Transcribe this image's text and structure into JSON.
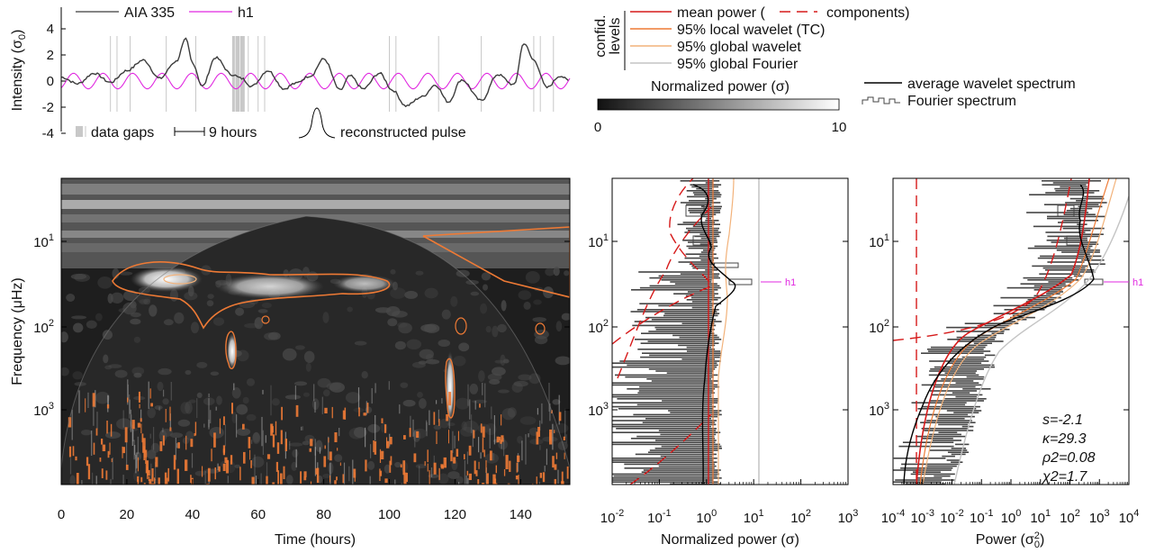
{
  "colors": {
    "aia": "#3c3c3c",
    "h1": "#e028e0",
    "mean_power": "#d61a1a",
    "local_wavelet": "#ee7a35",
    "global_wavelet": "#f2b27a",
    "global_fourier": "#c4c4c4",
    "avg_wavelet": "#000000",
    "fourier_bars": "#444444",
    "data_gaps": "#c8c8c8",
    "h1_label": "#e028e0"
  },
  "chart_data": [
    {
      "id": "lightcurve",
      "type": "line",
      "ylabel": "Intensity (σ0)",
      "ylim": [
        -4,
        4
      ],
      "yticks": [
        "4",
        "2",
        "0",
        "-2",
        "-4"
      ],
      "series": [
        {
          "name": "AIA 335",
          "x_hours": [
            0,
            5,
            10,
            15,
            20,
            25,
            30,
            35,
            38,
            40,
            43,
            47,
            52,
            55,
            58,
            63,
            68,
            71,
            76,
            80,
            85,
            88,
            92,
            97,
            101,
            105,
            110,
            114,
            118,
            122,
            128,
            133,
            138,
            141,
            144,
            148,
            152,
            155
          ],
          "values": [
            0.3,
            -0.2,
            0.6,
            -0.1,
            0.8,
            1.6,
            0.2,
            1.5,
            3.2,
            1.4,
            -0.4,
            1.8,
            0.5,
            0.2,
            -0.4,
            0.8,
            -0.6,
            -0.2,
            0.4,
            1.7,
            -0.7,
            0.4,
            -0.6,
            0.6,
            -0.7,
            -1.9,
            -1.2,
            -0.3,
            -1.6,
            0.1,
            -1.5,
            0.5,
            -0.3,
            2.9,
            1.6,
            -0.5,
            0.4,
            0.0
          ]
        },
        {
          "name": "h1",
          "period_hours": 9,
          "amplitude": 0.6
        }
      ],
      "data_gaps_hours": [
        15,
        17,
        21,
        32,
        41,
        52.5,
        53.5,
        54,
        55,
        55.5,
        57,
        60,
        62,
        100,
        102,
        115,
        128,
        144,
        146,
        150
      ],
      "annotations": [
        "data gaps",
        "9 hours",
        "reconstructed pulse"
      ]
    },
    {
      "id": "wavelet",
      "type": "heatmap",
      "title": "",
      "xlabel": "Time (hours)",
      "ylabel": "Frequency (μHz)",
      "xlim": [
        0,
        155
      ],
      "xticks": [
        "0",
        "20",
        "40",
        "60",
        "80",
        "100",
        "120",
        "140"
      ],
      "yticks": [
        {
          "base": "10",
          "exp": "1"
        },
        {
          "base": "10",
          "exp": "2"
        },
        {
          "base": "10",
          "exp": "3"
        }
      ],
      "colorbar": {
        "label": "Normalized power (σ)",
        "min": "0",
        "max": "10"
      }
    },
    {
      "id": "normalized_spectrum",
      "type": "line",
      "xlabel": "Normalized power (σ)",
      "xscale": "log",
      "xticks": [
        {
          "base": "10",
          "exp": "-2"
        },
        {
          "base": "10",
          "exp": "-1"
        },
        {
          "base": "10",
          "exp": "0"
        },
        {
          "base": "10",
          "exp": "1"
        },
        {
          "base": "10",
          "exp": "2"
        },
        {
          "base": "10",
          "exp": "3"
        }
      ],
      "yticks": [
        {
          "base": "10",
          "exp": "1"
        },
        {
          "base": "10",
          "exp": "2"
        },
        {
          "base": "10",
          "exp": "3"
        }
      ],
      "marker_label": "h1"
    },
    {
      "id": "power_spectrum",
      "type": "line",
      "xlabel": "Power (σ0²)",
      "xscale": "log",
      "xticks": [
        {
          "base": "10",
          "exp": "-4"
        },
        {
          "base": "10",
          "exp": "-3"
        },
        {
          "base": "10",
          "exp": "-2"
        },
        {
          "base": "10",
          "exp": "-1"
        },
        {
          "base": "10",
          "exp": "0"
        },
        {
          "base": "10",
          "exp": "1"
        },
        {
          "base": "10",
          "exp": "2"
        },
        {
          "base": "10",
          "exp": "3"
        },
        {
          "base": "10",
          "exp": "4"
        }
      ],
      "yticks": [
        {
          "base": "10",
          "exp": "1"
        },
        {
          "base": "10",
          "exp": "2"
        },
        {
          "base": "10",
          "exp": "3"
        }
      ],
      "marker_label": "h1",
      "fit": {
        "s": "s=-2.1",
        "kappa": "κ=29.3",
        "rho": "ρ2=0.08",
        "chi": "χ2=1.7"
      }
    }
  ],
  "legend": {
    "aia": "AIA 335",
    "h1": "h1",
    "mean_power": "mean power (",
    "components": "components)",
    "confid_1": "confid.",
    "confid_2": "levels",
    "local_wavelet": "95% local wavelet (TC)",
    "global_wavelet": "95% global wavelet",
    "global_fourier": "95% global Fourier",
    "avg_wavelet": "average wavelet spectrum",
    "fourier_spectrum": "Fourier spectrum"
  }
}
